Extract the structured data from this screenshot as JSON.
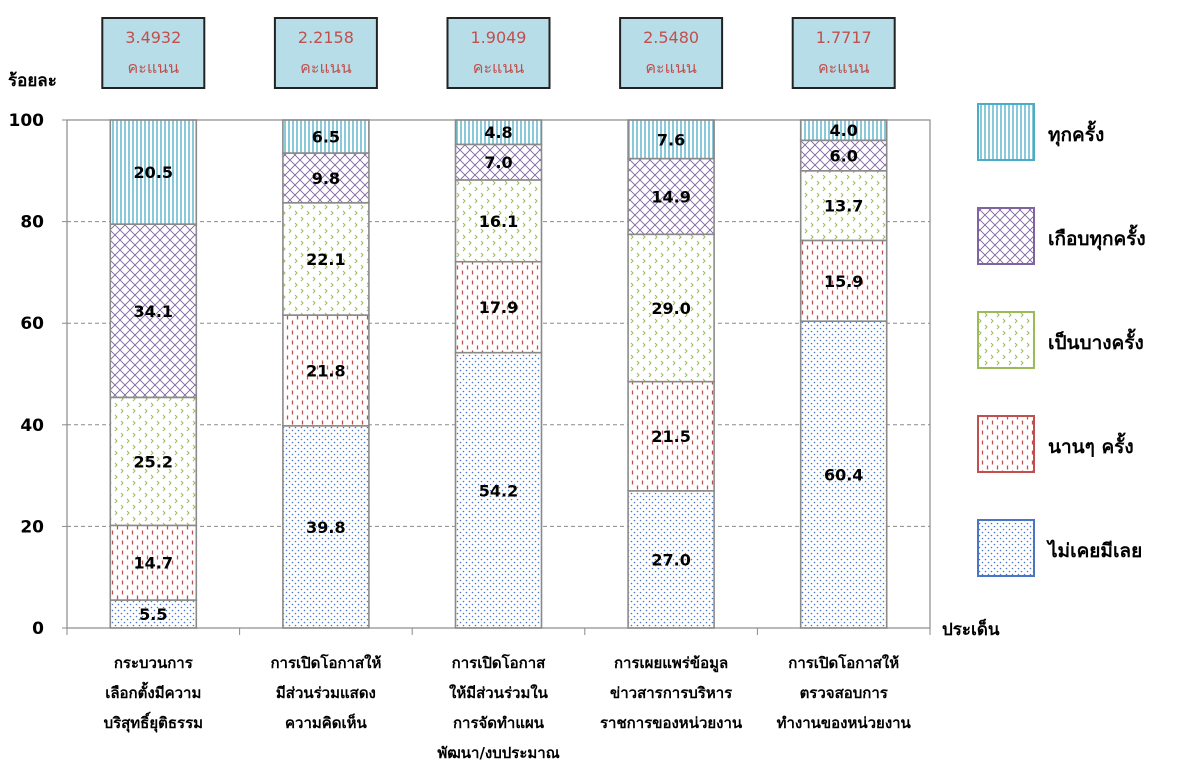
{
  "chart_data": {
    "type": "bar",
    "stacked": true,
    "ylabel": "ร้อยละ",
    "xlabel": "ประเด็น",
    "ylim": [
      0,
      100
    ],
    "yticks": [
      0,
      20,
      40,
      60,
      80,
      100
    ],
    "grid": true,
    "legend_position": "right",
    "categories": [
      [
        "กระบวนการ",
        "เลือกตั้งมีความ",
        "บริสุทธิ์ยุติธรรม"
      ],
      [
        "การเปิดโอกาสให้",
        "มีส่วนร่วมแสดง",
        "ความคิดเห็น"
      ],
      [
        "การเปิดโอกาส",
        "ให้มีส่วนร่วมใน",
        "การจัดทำแผน",
        "พัฒนา/งบประมาณ"
      ],
      [
        "การเผยแพร่ข้อมูล",
        "ข่าวสารการบริหาร",
        "ราชการของหน่วยงาน"
      ],
      [
        "การเปิดโอกาสให้",
        "ตรวจสอบการ",
        "ทำงานของหน่วยงาน"
      ]
    ],
    "scores": [
      "3.4932",
      "2.2158",
      "1.9049",
      "2.5480",
      "1.7717"
    ],
    "score_unit": "คะแนน",
    "series": [
      {
        "name": "ไม่เคยมีเลย",
        "values": [
          5.5,
          39.8,
          54.2,
          27.0,
          60.4
        ],
        "color": "#4a74c4",
        "pattern": "dots"
      },
      {
        "name": "นานๆ ครั้ง",
        "values": [
          14.7,
          21.8,
          17.9,
          21.5,
          15.9
        ],
        "color": "#c0504d",
        "pattern": "dashes"
      },
      {
        "name": "เป็นบางครั้ง",
        "values": [
          25.2,
          22.1,
          16.1,
          29.0,
          13.7
        ],
        "color": "#9bbb59",
        "pattern": "zigzag"
      },
      {
        "name": "เกือบทุกครั้ง",
        "values": [
          34.1,
          9.8,
          7.0,
          14.9,
          6.0
        ],
        "color": "#8064a2",
        "pattern": "crosshatch"
      },
      {
        "name": "ทุกครั้ง",
        "values": [
          20.5,
          6.5,
          4.8,
          7.6,
          4.0
        ],
        "color": "#4bacc6",
        "pattern": "vlines"
      }
    ]
  }
}
